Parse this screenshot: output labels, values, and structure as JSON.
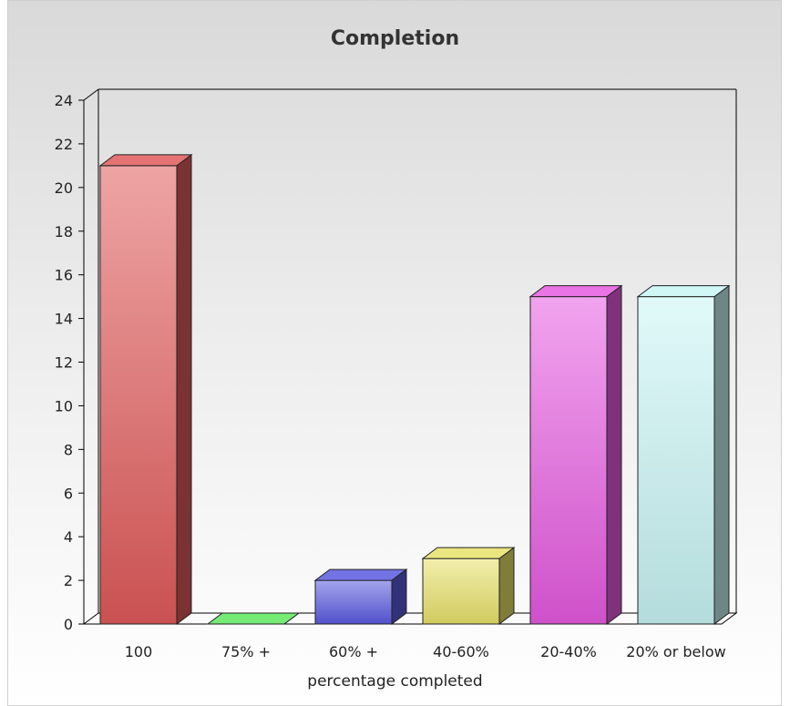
{
  "colors": {
    "background_top": "#d9d9d9",
    "background_bottom": "#ffffff",
    "series": [
      "#e05a5a",
      "#5ee85e",
      "#5a5ae0",
      "#e8e26a",
      "#e65ae0",
      "#c8f4f4"
    ]
  },
  "chart_data": {
    "type": "bar",
    "title": "Completion",
    "xlabel": "percentage completed",
    "ylabel": "",
    "categories": [
      "100",
      "75% +",
      "60% +",
      "40-60%",
      "20-40%",
      "20% or below"
    ],
    "values": [
      21,
      0,
      2,
      3,
      15,
      15
    ],
    "ylim": [
      0,
      24
    ],
    "yticks": [
      0,
      2,
      4,
      6,
      8,
      10,
      12,
      14,
      16,
      18,
      20,
      22,
      24
    ],
    "style": "3d",
    "grid": false,
    "legend": "none"
  }
}
